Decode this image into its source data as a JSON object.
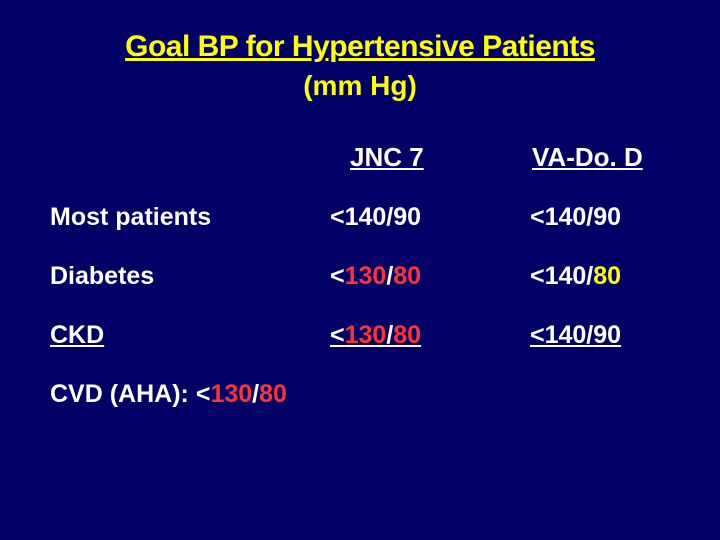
{
  "colors": {
    "background": "#000066",
    "titleText": "#ffff00",
    "bodyText": "#ffffff",
    "accent1": "#ff3333",
    "accent2": "#ffff00"
  },
  "typography": {
    "title_fontsize": 30,
    "subtitle_fontsize": 28,
    "header_fontsize": 26,
    "row_fontsize": 25,
    "footnote_fontsize": 25,
    "font_family": "Verdana, Arial, sans-serif",
    "weight": "bold"
  },
  "slide": {
    "title": "Goal BP for Hypertensive Patients",
    "subtitle": "(mm Hg)",
    "columns": [
      "JNC 7",
      "VA-Do. D"
    ],
    "rows": [
      {
        "label": "Most patients",
        "jnc7": {
          "prefix": "<140/",
          "suffix": "90",
          "suffix_color": "body"
        },
        "vadod": {
          "prefix": "<140/",
          "suffix": "90",
          "suffix_color": "body"
        },
        "underlined": false
      },
      {
        "label": "Diabetes",
        "jnc7": {
          "prefix": "<",
          "mid": "130",
          "mid_color": "accent1",
          "slash": "/",
          "suffix": "80",
          "suffix_color": "accent1"
        },
        "vadod": {
          "prefix": "<140/",
          "suffix": "80",
          "suffix_color": "accent2"
        },
        "underlined": false
      },
      {
        "label": "CKD",
        "jnc7": {
          "prefix": "<",
          "mid": "130",
          "mid_color": "accent1",
          "slash": "/",
          "suffix": "80",
          "suffix_color": "accent1"
        },
        "vadod": {
          "prefix": "<140/",
          "suffix": "90",
          "suffix_color": "body"
        },
        "underlined": true
      }
    ],
    "footnote": {
      "label": "CVD (AHA): ",
      "prefix": "<",
      "mid": "130",
      "mid_color": "accent1",
      "slash": "/",
      "suffix": "80",
      "suffix_color": "accent1"
    }
  }
}
